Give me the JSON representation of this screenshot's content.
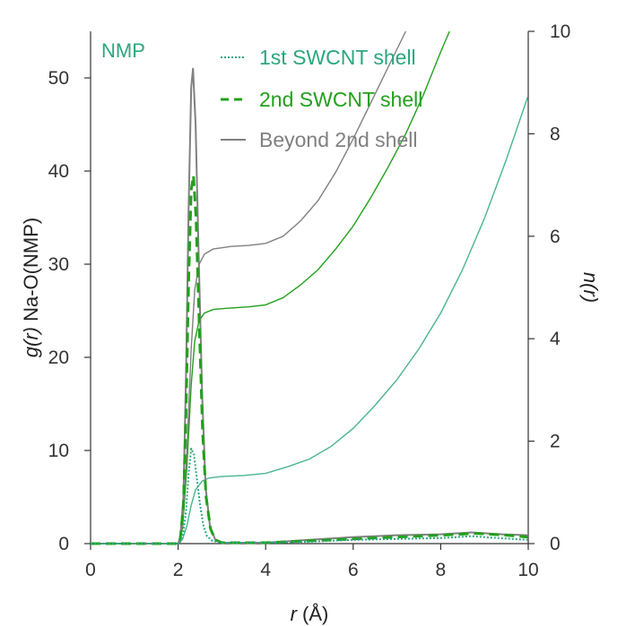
{
  "chart_data": {
    "type": "line",
    "panel_label": "NMP",
    "xlabel": {
      "var": "r",
      "unit": " (Å)"
    },
    "ylabel_left": {
      "var": "g(r)",
      "rest": " Na-O(NMP)"
    },
    "ylabel_right": {
      "var": "n(r)"
    },
    "xlim": [
      0,
      10
    ],
    "ylim_left": [
      0,
      55
    ],
    "ylim_right": [
      0,
      10
    ],
    "x_ticks": [
      "0",
      "2",
      "4",
      "6",
      "8",
      "10"
    ],
    "y_ticks_left": [
      "0",
      "10",
      "20",
      "30",
      "40",
      "50"
    ],
    "y_ticks_right": [
      "0",
      "2",
      "4",
      "6",
      "8",
      "10"
    ],
    "legend_position": "top-center",
    "series": [
      {
        "name": "1st SWCNT shell",
        "color": "#2aa77f",
        "style": "dotted",
        "gr": [
          [
            0,
            0
          ],
          [
            2.0,
            0
          ],
          [
            2.05,
            0.2
          ],
          [
            2.12,
            1.2
          ],
          [
            2.18,
            3.5
          ],
          [
            2.24,
            7.5
          ],
          [
            2.3,
            10.2
          ],
          [
            2.36,
            9.6
          ],
          [
            2.42,
            7.3
          ],
          [
            2.5,
            4.2
          ],
          [
            2.58,
            1.9
          ],
          [
            2.66,
            0.8
          ],
          [
            2.78,
            0.3
          ],
          [
            3.0,
            0.1
          ],
          [
            4.0,
            0.1
          ],
          [
            5.0,
            0.2
          ],
          [
            6.0,
            0.4
          ],
          [
            7.0,
            0.5
          ],
          [
            8.0,
            0.6
          ],
          [
            8.7,
            0.8
          ],
          [
            9.3,
            0.6
          ],
          [
            10.0,
            0.4
          ]
        ],
        "nr": [
          [
            0,
            0
          ],
          [
            2.0,
            0
          ],
          [
            2.1,
            0.08
          ],
          [
            2.2,
            0.35
          ],
          [
            2.3,
            0.75
          ],
          [
            2.4,
            1.05
          ],
          [
            2.55,
            1.22
          ],
          [
            2.7,
            1.28
          ],
          [
            3.0,
            1.31
          ],
          [
            3.5,
            1.33
          ],
          [
            4.0,
            1.37
          ],
          [
            4.5,
            1.5
          ],
          [
            5.0,
            1.65
          ],
          [
            5.5,
            1.9
          ],
          [
            6.0,
            2.25
          ],
          [
            6.5,
            2.7
          ],
          [
            7.0,
            3.2
          ],
          [
            7.5,
            3.8
          ],
          [
            8.0,
            4.5
          ],
          [
            8.5,
            5.35
          ],
          [
            9.0,
            6.35
          ],
          [
            9.5,
            7.5
          ],
          [
            10.0,
            8.75
          ]
        ]
      },
      {
        "name": "2nd SWCNT shell",
        "color": "#22a01c",
        "style": "dashed",
        "gr": [
          [
            0,
            0
          ],
          [
            2.0,
            0
          ],
          [
            2.05,
            0.5
          ],
          [
            2.12,
            4
          ],
          [
            2.18,
            14
          ],
          [
            2.24,
            28
          ],
          [
            2.3,
            38
          ],
          [
            2.35,
            39.5
          ],
          [
            2.41,
            35
          ],
          [
            2.48,
            24
          ],
          [
            2.56,
            12
          ],
          [
            2.64,
            5
          ],
          [
            2.74,
            1.6
          ],
          [
            2.85,
            0.4
          ],
          [
            3.0,
            0.1
          ],
          [
            4.0,
            0.1
          ],
          [
            5.0,
            0.3
          ],
          [
            6.0,
            0.5
          ],
          [
            7.0,
            0.7
          ],
          [
            8.0,
            0.9
          ],
          [
            8.8,
            1.1
          ],
          [
            9.5,
            0.9
          ],
          [
            10.0,
            0.7
          ]
        ],
        "nr": [
          [
            0,
            0
          ],
          [
            2.0,
            0
          ],
          [
            2.1,
            0.3
          ],
          [
            2.2,
            1.5
          ],
          [
            2.3,
            3.1
          ],
          [
            2.38,
            3.95
          ],
          [
            2.48,
            4.35
          ],
          [
            2.6,
            4.5
          ],
          [
            2.8,
            4.57
          ],
          [
            3.2,
            4.6
          ],
          [
            3.6,
            4.62
          ],
          [
            4.0,
            4.66
          ],
          [
            4.4,
            4.8
          ],
          [
            4.8,
            5.05
          ],
          [
            5.2,
            5.35
          ],
          [
            5.6,
            5.75
          ],
          [
            6.0,
            6.2
          ],
          [
            6.4,
            6.75
          ],
          [
            6.8,
            7.35
          ],
          [
            7.2,
            8.0
          ],
          [
            7.6,
            8.75
          ],
          [
            8.0,
            9.6
          ],
          [
            8.2,
            10.0
          ]
        ]
      },
      {
        "name": "Beyond 2nd shell",
        "color": "#808080",
        "style": "solid",
        "gr": [
          [
            0,
            0
          ],
          [
            2.0,
            0
          ],
          [
            2.05,
            0.6
          ],
          [
            2.12,
            5
          ],
          [
            2.18,
            18
          ],
          [
            2.24,
            36
          ],
          [
            2.3,
            49
          ],
          [
            2.34,
            51
          ],
          [
            2.4,
            45
          ],
          [
            2.47,
            31
          ],
          [
            2.55,
            16
          ],
          [
            2.63,
            6
          ],
          [
            2.73,
            1.8
          ],
          [
            2.85,
            0.4
          ],
          [
            3.0,
            0.1
          ],
          [
            4.0,
            0.1
          ],
          [
            5.0,
            0.4
          ],
          [
            6.0,
            0.7
          ],
          [
            7.0,
            0.9
          ],
          [
            8.0,
            1.0
          ],
          [
            8.7,
            1.2
          ],
          [
            9.4,
            1.0
          ],
          [
            10.0,
            0.9
          ]
        ],
        "nr": [
          [
            0,
            0
          ],
          [
            2.0,
            0
          ],
          [
            2.1,
            0.35
          ],
          [
            2.2,
            1.8
          ],
          [
            2.3,
            3.8
          ],
          [
            2.38,
            4.95
          ],
          [
            2.48,
            5.45
          ],
          [
            2.6,
            5.65
          ],
          [
            2.8,
            5.75
          ],
          [
            3.2,
            5.8
          ],
          [
            3.6,
            5.82
          ],
          [
            4.0,
            5.86
          ],
          [
            4.4,
            6.0
          ],
          [
            4.8,
            6.3
          ],
          [
            5.2,
            6.7
          ],
          [
            5.6,
            7.25
          ],
          [
            6.0,
            7.9
          ],
          [
            6.4,
            8.6
          ],
          [
            6.8,
            9.3
          ],
          [
            7.2,
            10.0
          ]
        ]
      }
    ]
  }
}
